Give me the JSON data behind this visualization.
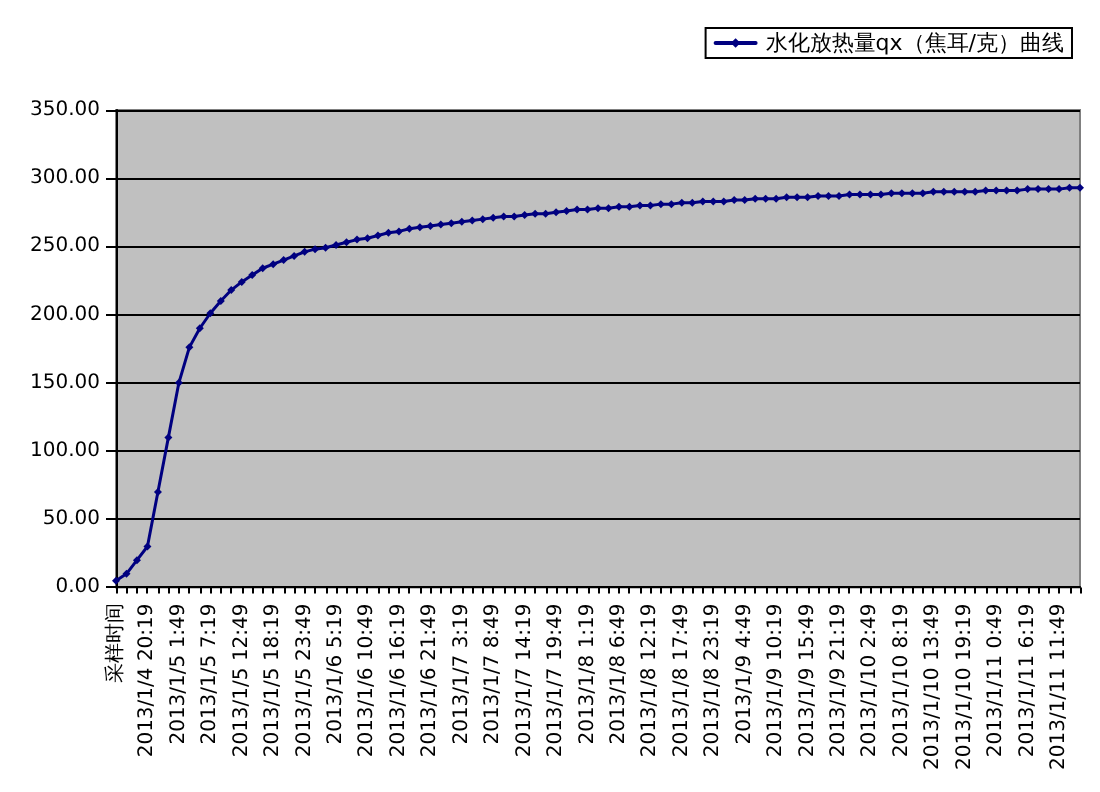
{
  "chart_data": {
    "type": "line",
    "categories": [
      "采样时间",
      null,
      null,
      "2013/1/4 20:19",
      null,
      null,
      "2013/1/5 1:49",
      null,
      null,
      "2013/1/5 7:19",
      null,
      null,
      "2013/1/5 12:49",
      null,
      null,
      "2013/1/5 18:19",
      null,
      null,
      "2013/1/5 23:49",
      null,
      null,
      "2013/1/6 5:19",
      null,
      null,
      "2013/1/6 10:49",
      null,
      null,
      "2013/1/6 16:19",
      null,
      null,
      "2013/1/6 21:49",
      null,
      null,
      "2013/1/7 3:19",
      null,
      null,
      "2013/1/7 8:49",
      null,
      null,
      "2013/1/7 14:19",
      null,
      null,
      "2013/1/7 19:49",
      null,
      null,
      "2013/1/8 1:19",
      null,
      null,
      "2013/1/8 6:49",
      null,
      null,
      "2013/1/8 12:19",
      null,
      null,
      "2013/1/8 17:49",
      null,
      null,
      "2013/1/8 23:19",
      null,
      null,
      "2013/1/9 4:49",
      null,
      null,
      "2013/1/9 10:19",
      null,
      null,
      "2013/1/9 15:49",
      null,
      null,
      "2013/1/9 21:19",
      null,
      null,
      "2013/1/10 2:49",
      null,
      null,
      "2013/1/10 8:19",
      null,
      null,
      "2013/1/10 13:49",
      null,
      null,
      "2013/1/10 19:19",
      null,
      null,
      "2013/1/11 0:49",
      null,
      null,
      "2013/1/11 6:19",
      null,
      null,
      "2013/1/11 11:49",
      null,
      null
    ],
    "series": [
      {
        "name": "水化放热量qx（焦耳/克）曲线",
        "color": "#000080",
        "values": [
          5,
          10,
          20,
          30,
          70,
          110,
          150,
          176,
          190,
          201,
          210,
          218,
          224,
          229,
          234,
          237,
          240,
          243,
          246,
          248,
          249,
          251,
          253,
          255,
          256,
          258,
          260,
          261,
          263,
          264,
          265,
          266,
          267,
          268,
          269,
          270,
          271,
          272,
          272,
          273,
          274,
          274,
          275,
          276,
          277,
          277,
          278,
          278,
          279,
          279,
          280,
          280,
          281,
          281,
          282,
          282,
          283,
          283,
          283,
          284,
          284,
          285,
          285,
          285,
          286,
          286,
          286,
          287,
          287,
          287,
          288,
          288,
          288,
          288,
          289,
          289,
          289,
          289,
          290,
          290,
          290,
          290,
          290,
          291,
          291,
          291,
          291,
          292,
          292,
          292,
          292,
          293,
          293
        ]
      }
    ],
    "ylim": [
      0,
      350
    ],
    "yticks": [
      {
        "value": 0,
        "label": "0.00"
      },
      {
        "value": 50,
        "label": "50.00"
      },
      {
        "value": 100,
        "label": "100.00"
      },
      {
        "value": 150,
        "label": "150.00"
      },
      {
        "value": 200,
        "label": "200.00"
      },
      {
        "value": 250,
        "label": "250.00"
      },
      {
        "value": 300,
        "label": "300.00"
      },
      {
        "value": 350,
        "label": "350.00"
      }
    ],
    "grid": "y",
    "legend": "top right",
    "marker": "diamond",
    "line_style": "solid"
  }
}
